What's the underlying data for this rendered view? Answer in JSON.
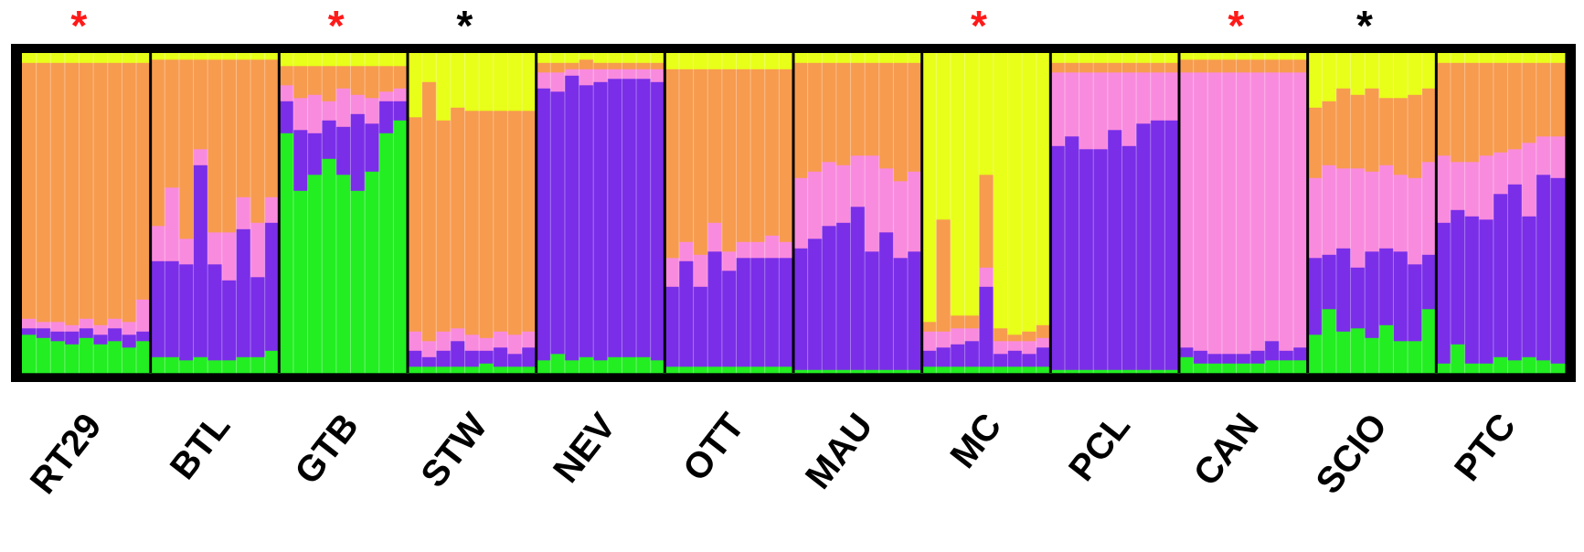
{
  "chart_data": {
    "type": "structure-admixture-barplot",
    "description_stack_order": "bottom-to-top: green, purple, pink, orange, yellow; values are ancestry proportions (0-1) per individual bar",
    "component_colors": {
      "green": "#22ee22",
      "purple": "#7a2ee8",
      "pink": "#f98bde",
      "orange": "#f79b4f",
      "yellow": "#e8ff19"
    },
    "marker_colors": {
      "red": "#ff1a1a",
      "black": "#000000"
    },
    "groups": [
      {
        "label": "RT29",
        "marker": "*",
        "marker_color": "red",
        "individuals": [
          [
            0.12,
            0.02,
            0.03,
            0.8,
            0.03
          ],
          [
            0.11,
            0.03,
            0.02,
            0.81,
            0.03
          ],
          [
            0.1,
            0.03,
            0.03,
            0.81,
            0.03
          ],
          [
            0.09,
            0.04,
            0.02,
            0.82,
            0.03
          ],
          [
            0.11,
            0.03,
            0.03,
            0.8,
            0.03
          ],
          [
            0.09,
            0.03,
            0.03,
            0.82,
            0.03
          ],
          [
            0.1,
            0.04,
            0.03,
            0.8,
            0.03
          ],
          [
            0.08,
            0.04,
            0.04,
            0.81,
            0.03
          ],
          [
            0.1,
            0.03,
            0.1,
            0.74,
            0.03
          ]
        ]
      },
      {
        "label": "BTL",
        "marker": "",
        "marker_color": "",
        "individuals": [
          [
            0.05,
            0.3,
            0.11,
            0.52,
            0.02
          ],
          [
            0.05,
            0.3,
            0.23,
            0.4,
            0.02
          ],
          [
            0.04,
            0.3,
            0.08,
            0.56,
            0.02
          ],
          [
            0.05,
            0.6,
            0.05,
            0.28,
            0.02
          ],
          [
            0.04,
            0.3,
            0.1,
            0.54,
            0.02
          ],
          [
            0.04,
            0.25,
            0.15,
            0.54,
            0.02
          ],
          [
            0.05,
            0.4,
            0.1,
            0.43,
            0.02
          ],
          [
            0.05,
            0.25,
            0.17,
            0.51,
            0.02
          ],
          [
            0.07,
            0.4,
            0.08,
            0.43,
            0.02
          ]
        ]
      },
      {
        "label": "GTB",
        "marker": "*",
        "marker_color": "red",
        "individuals": [
          [
            0.75,
            0.1,
            0.05,
            0.06,
            0.04
          ],
          [
            0.57,
            0.19,
            0.1,
            0.1,
            0.04
          ],
          [
            0.62,
            0.13,
            0.12,
            0.09,
            0.04
          ],
          [
            0.67,
            0.12,
            0.06,
            0.11,
            0.04
          ],
          [
            0.62,
            0.15,
            0.12,
            0.07,
            0.04
          ],
          [
            0.57,
            0.24,
            0.06,
            0.09,
            0.04
          ],
          [
            0.63,
            0.15,
            0.08,
            0.1,
            0.04
          ],
          [
            0.75,
            0.1,
            0.03,
            0.08,
            0.04
          ],
          [
            0.79,
            0.06,
            0.04,
            0.07,
            0.04
          ]
        ]
      },
      {
        "label": "STW",
        "marker": "*",
        "marker_color": "black",
        "individuals": [
          [
            0.02,
            0.05,
            0.06,
            0.67,
            0.2
          ],
          [
            0.02,
            0.03,
            0.05,
            0.81,
            0.09
          ],
          [
            0.02,
            0.05,
            0.06,
            0.66,
            0.21
          ],
          [
            0.02,
            0.08,
            0.04,
            0.69,
            0.17
          ],
          [
            0.02,
            0.05,
            0.05,
            0.7,
            0.18
          ],
          [
            0.03,
            0.04,
            0.04,
            0.71,
            0.18
          ],
          [
            0.02,
            0.06,
            0.05,
            0.69,
            0.18
          ],
          [
            0.02,
            0.04,
            0.06,
            0.7,
            0.18
          ],
          [
            0.02,
            0.06,
            0.05,
            0.69,
            0.18
          ]
        ]
      },
      {
        "label": "NEV",
        "marker": "",
        "marker_color": "",
        "individuals": [
          [
            0.04,
            0.85,
            0.05,
            0.03,
            0.03
          ],
          [
            0.06,
            0.82,
            0.06,
            0.03,
            0.03
          ],
          [
            0.04,
            0.89,
            0.02,
            0.02,
            0.03
          ],
          [
            0.05,
            0.85,
            0.05,
            0.03,
            0.02
          ],
          [
            0.04,
            0.87,
            0.04,
            0.02,
            0.03
          ],
          [
            0.05,
            0.87,
            0.03,
            0.02,
            0.03
          ],
          [
            0.05,
            0.87,
            0.03,
            0.02,
            0.03
          ],
          [
            0.05,
            0.87,
            0.03,
            0.02,
            0.03
          ],
          [
            0.04,
            0.87,
            0.04,
            0.02,
            0.03
          ]
        ]
      },
      {
        "label": "OTT",
        "marker": "",
        "marker_color": "",
        "individuals": [
          [
            0.02,
            0.25,
            0.09,
            0.59,
            0.05
          ],
          [
            0.02,
            0.33,
            0.06,
            0.54,
            0.05
          ],
          [
            0.02,
            0.25,
            0.1,
            0.58,
            0.05
          ],
          [
            0.02,
            0.36,
            0.09,
            0.48,
            0.05
          ],
          [
            0.02,
            0.3,
            0.06,
            0.57,
            0.05
          ],
          [
            0.02,
            0.34,
            0.05,
            0.54,
            0.05
          ],
          [
            0.02,
            0.34,
            0.05,
            0.54,
            0.05
          ],
          [
            0.02,
            0.34,
            0.07,
            0.52,
            0.05
          ],
          [
            0.02,
            0.34,
            0.05,
            0.54,
            0.05
          ]
        ]
      },
      {
        "label": "MAU",
        "marker": "",
        "marker_color": "",
        "individuals": [
          [
            0.01,
            0.38,
            0.22,
            0.36,
            0.03
          ],
          [
            0.01,
            0.41,
            0.21,
            0.34,
            0.03
          ],
          [
            0.01,
            0.45,
            0.2,
            0.31,
            0.03
          ],
          [
            0.01,
            0.46,
            0.18,
            0.32,
            0.03
          ],
          [
            0.01,
            0.51,
            0.16,
            0.29,
            0.03
          ],
          [
            0.01,
            0.37,
            0.3,
            0.29,
            0.03
          ],
          [
            0.01,
            0.43,
            0.2,
            0.33,
            0.03
          ],
          [
            0.01,
            0.35,
            0.24,
            0.37,
            0.03
          ],
          [
            0.01,
            0.37,
            0.25,
            0.34,
            0.03
          ]
        ]
      },
      {
        "label": "MC",
        "marker": "*",
        "marker_color": "red",
        "individuals": [
          [
            0.02,
            0.05,
            0.06,
            0.03,
            0.84
          ],
          [
            0.02,
            0.06,
            0.05,
            0.35,
            0.52
          ],
          [
            0.02,
            0.07,
            0.05,
            0.04,
            0.82
          ],
          [
            0.02,
            0.08,
            0.04,
            0.04,
            0.82
          ],
          [
            0.02,
            0.25,
            0.06,
            0.29,
            0.38
          ],
          [
            0.02,
            0.04,
            0.04,
            0.04,
            0.86
          ],
          [
            0.02,
            0.05,
            0.03,
            0.02,
            0.88
          ],
          [
            0.02,
            0.04,
            0.04,
            0.03,
            0.87
          ],
          [
            0.02,
            0.06,
            0.03,
            0.04,
            0.85
          ]
        ]
      },
      {
        "label": "PCL",
        "marker": "",
        "marker_color": "",
        "individuals": [
          [
            0.01,
            0.7,
            0.23,
            0.03,
            0.03
          ],
          [
            0.01,
            0.73,
            0.2,
            0.03,
            0.03
          ],
          [
            0.01,
            0.69,
            0.24,
            0.03,
            0.03
          ],
          [
            0.01,
            0.69,
            0.24,
            0.03,
            0.03
          ],
          [
            0.01,
            0.75,
            0.18,
            0.03,
            0.03
          ],
          [
            0.01,
            0.7,
            0.23,
            0.03,
            0.03
          ],
          [
            0.01,
            0.77,
            0.16,
            0.03,
            0.03
          ],
          [
            0.01,
            0.78,
            0.15,
            0.03,
            0.03
          ],
          [
            0.01,
            0.78,
            0.15,
            0.03,
            0.03
          ]
        ]
      },
      {
        "label": "CAN",
        "marker": "*",
        "marker_color": "red",
        "individuals": [
          [
            0.05,
            0.03,
            0.86,
            0.04,
            0.02
          ],
          [
            0.03,
            0.04,
            0.87,
            0.04,
            0.02
          ],
          [
            0.03,
            0.03,
            0.88,
            0.04,
            0.02
          ],
          [
            0.03,
            0.03,
            0.88,
            0.04,
            0.02
          ],
          [
            0.03,
            0.03,
            0.88,
            0.04,
            0.02
          ],
          [
            0.03,
            0.04,
            0.87,
            0.04,
            0.02
          ],
          [
            0.04,
            0.06,
            0.84,
            0.04,
            0.02
          ],
          [
            0.04,
            0.03,
            0.87,
            0.04,
            0.02
          ],
          [
            0.04,
            0.04,
            0.86,
            0.04,
            0.02
          ]
        ]
      },
      {
        "label": "SCIO",
        "marker": "*",
        "marker_color": "black",
        "individuals": [
          [
            0.12,
            0.24,
            0.25,
            0.22,
            0.17
          ],
          [
            0.2,
            0.17,
            0.28,
            0.2,
            0.15
          ],
          [
            0.13,
            0.26,
            0.25,
            0.25,
            0.11
          ],
          [
            0.14,
            0.19,
            0.31,
            0.23,
            0.13
          ],
          [
            0.11,
            0.27,
            0.25,
            0.26,
            0.11
          ],
          [
            0.15,
            0.24,
            0.26,
            0.21,
            0.14
          ],
          [
            0.1,
            0.28,
            0.24,
            0.24,
            0.14
          ],
          [
            0.1,
            0.24,
            0.27,
            0.26,
            0.13
          ],
          [
            0.2,
            0.17,
            0.29,
            0.23,
            0.11
          ]
        ]
      },
      {
        "label": "PTC",
        "marker": "",
        "marker_color": "",
        "individuals": [
          [
            0.03,
            0.44,
            0.21,
            0.29,
            0.03
          ],
          [
            0.09,
            0.42,
            0.15,
            0.31,
            0.03
          ],
          [
            0.03,
            0.46,
            0.17,
            0.31,
            0.03
          ],
          [
            0.03,
            0.45,
            0.2,
            0.29,
            0.03
          ],
          [
            0.05,
            0.51,
            0.13,
            0.28,
            0.03
          ],
          [
            0.04,
            0.55,
            0.11,
            0.27,
            0.03
          ],
          [
            0.05,
            0.44,
            0.23,
            0.25,
            0.03
          ],
          [
            0.04,
            0.58,
            0.12,
            0.23,
            0.03
          ],
          [
            0.03,
            0.58,
            0.13,
            0.23,
            0.03
          ]
        ]
      }
    ]
  }
}
